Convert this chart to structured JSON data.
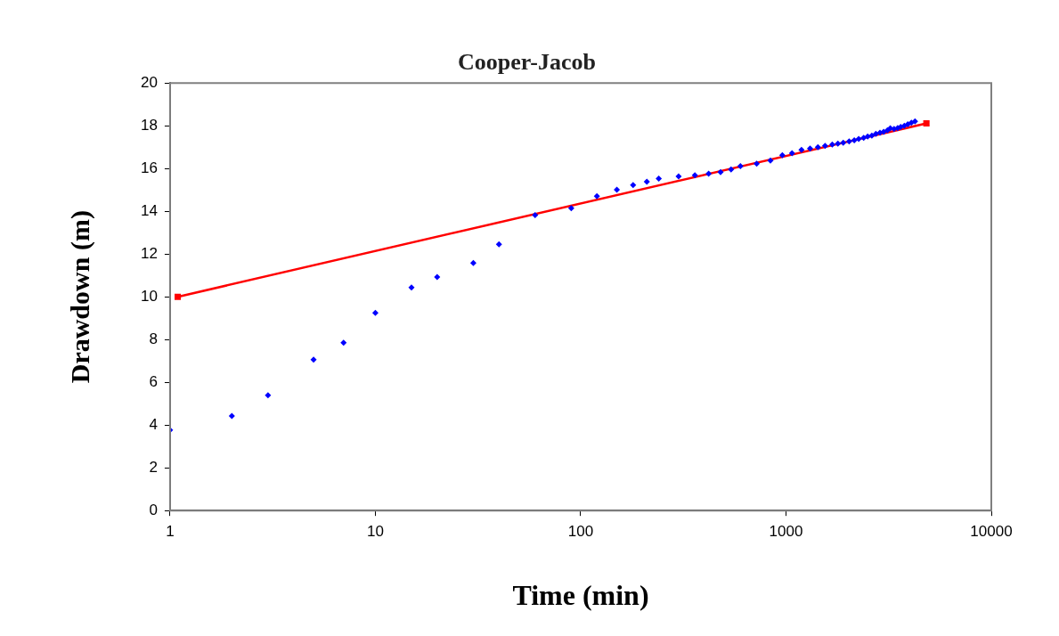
{
  "chart_data": {
    "type": "scatter",
    "title": "Cooper-Jacob",
    "xlabel": "Time (min)",
    "ylabel": "Drawdown (m)",
    "log": "x",
    "grid": false,
    "legend": false,
    "xlim": [
      1,
      10000
    ],
    "xticks": [
      1,
      10,
      100,
      1000,
      10000
    ],
    "ylim": [
      0,
      20
    ],
    "yticks": [
      0,
      2,
      4,
      6,
      8,
      10,
      12,
      14,
      16,
      18,
      20
    ],
    "series": [
      {
        "type": "scatter",
        "color": "#0000ff",
        "marker": "diamond",
        "x": [
          1,
          2,
          3,
          5,
          7,
          10,
          15,
          20,
          30,
          40,
          60,
          90,
          120,
          150,
          180,
          210,
          240,
          300,
          360,
          420,
          480,
          540,
          600,
          720,
          840,
          960,
          1070,
          1190,
          1310,
          1430,
          1550,
          1680,
          1790,
          1900,
          2030,
          2150,
          2260,
          2390,
          2500,
          2620,
          2740,
          2870,
          2990,
          3120,
          3220,
          3360,
          3500,
          3620,
          3770,
          3920,
          4080,
          4250
        ],
        "values": [
          3.77,
          4.42,
          5.39,
          7.06,
          7.85,
          9.25,
          10.44,
          10.92,
          11.58,
          12.46,
          13.82,
          14.14,
          14.71,
          15.01,
          15.23,
          15.38,
          15.53,
          15.63,
          15.69,
          15.76,
          15.83,
          15.96,
          16.11,
          16.23,
          16.37,
          16.62,
          16.72,
          16.87,
          16.94,
          17.0,
          17.06,
          17.12,
          17.16,
          17.21,
          17.27,
          17.32,
          17.38,
          17.44,
          17.5,
          17.54,
          17.62,
          17.68,
          17.72,
          17.79,
          17.88,
          17.85,
          17.89,
          17.95,
          18.0,
          18.07,
          18.14,
          18.21
        ]
      },
      {
        "type": "line",
        "color": "#ff0000",
        "marker": "square",
        "line_style": "solid",
        "x": [
          1.09,
          4830
        ],
        "values": [
          10.0,
          18.11
        ]
      }
    ]
  }
}
